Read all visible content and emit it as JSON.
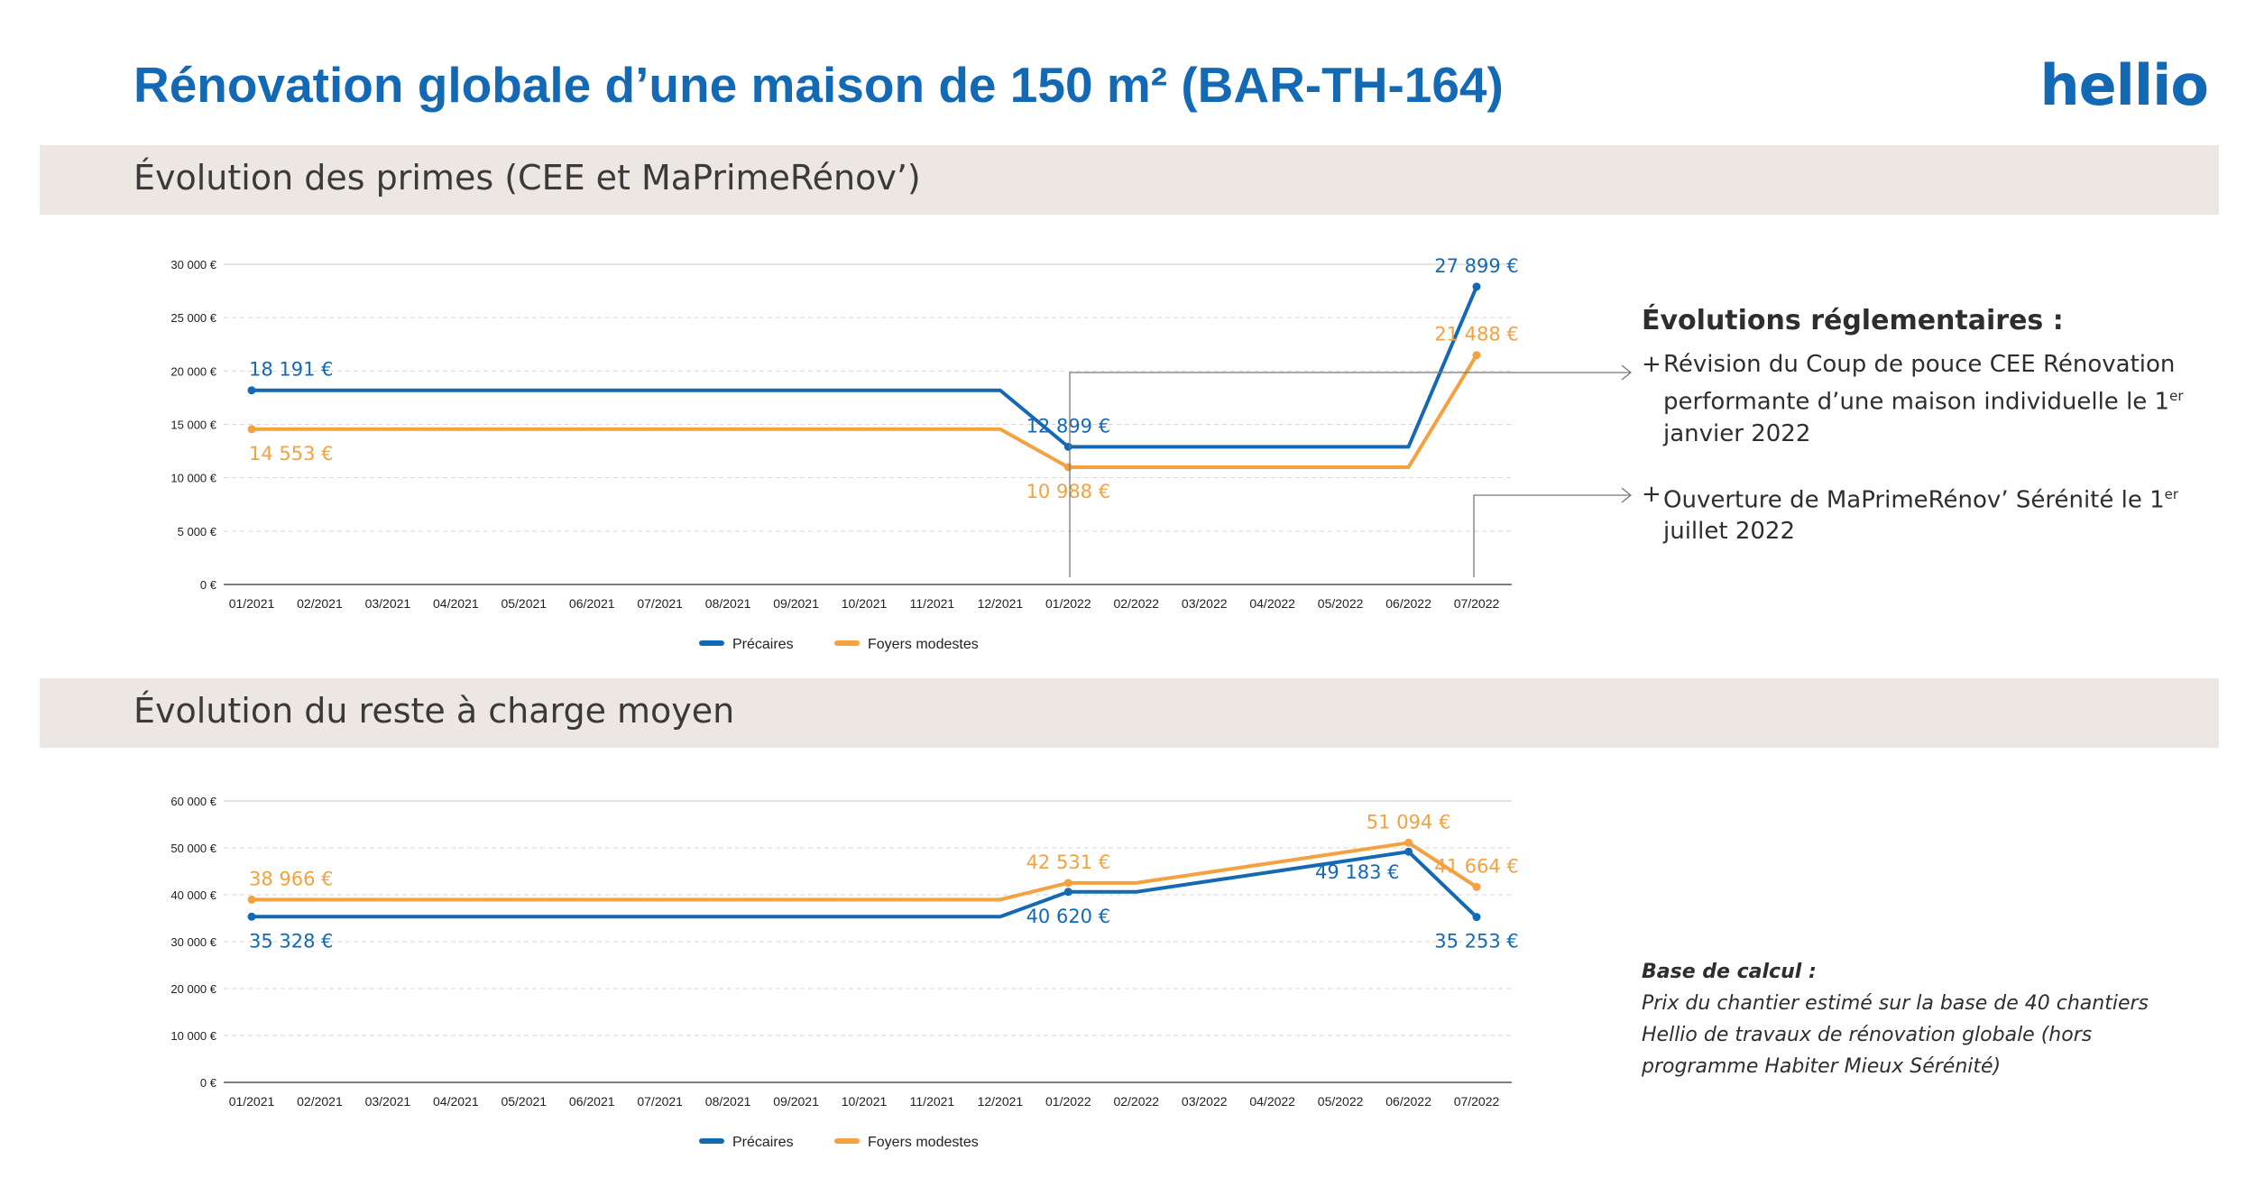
{
  "header": {
    "title": "Rénovation globale d’une maison de 150 m² (BAR-TH-164)",
    "logo": "hellio"
  },
  "section1": {
    "title": "Évolution des primes (CEE et MaPrimeRénov’)"
  },
  "section2": {
    "title": "Évolution du reste à charge moyen"
  },
  "colors": {
    "precaires": "#1469b4",
    "modestes": "#f4a140",
    "band": "#ece7e3"
  },
  "chart_data": [
    {
      "type": "line",
      "categories": [
        "01/2021",
        "02/2021",
        "03/2021",
        "04/2021",
        "05/2021",
        "06/2021",
        "07/2021",
        "08/2021",
        "09/2021",
        "10/2021",
        "11/2021",
        "12/2021",
        "01/2022",
        "02/2022",
        "03/2022",
        "04/2022",
        "05/2022",
        "06/2022",
        "07/2022"
      ],
      "ylim": [
        0,
        30000
      ],
      "yticks": [
        0,
        5000,
        10000,
        15000,
        20000,
        25000,
        30000
      ],
      "ytick_labels": [
        "0 €",
        "5 000 €",
        "10 000 €",
        "15 000 €",
        "20 000 €",
        "25 000 €",
        "30 000 €"
      ],
      "grid": true,
      "legend": "bottom",
      "series": [
        {
          "name": "Précaires",
          "color": "#1469b4",
          "values": [
            18191,
            18191,
            18191,
            18191,
            18191,
            18191,
            18191,
            18191,
            18191,
            18191,
            18191,
            18191,
            12899,
            12899,
            12899,
            12899,
            12899,
            12899,
            27899
          ],
          "labels": [
            {
              "index": 0,
              "text": "18 191 €",
              "pos": "above"
            },
            {
              "index": 12,
              "text": "12 899 €",
              "pos": "above"
            },
            {
              "index": 18,
              "text": "27 899 €",
              "pos": "above"
            }
          ]
        },
        {
          "name": "Foyers modestes",
          "color": "#f4a140",
          "values": [
            14553,
            14553,
            14553,
            14553,
            14553,
            14553,
            14553,
            14553,
            14553,
            14553,
            14553,
            14553,
            10988,
            10988,
            10988,
            10988,
            10988,
            10988,
            21488
          ],
          "labels": [
            {
              "index": 0,
              "text": "14 553 €",
              "pos": "below"
            },
            {
              "index": 12,
              "text": "10 988 €",
              "pos": "below"
            },
            {
              "index": 18,
              "text": "21 488 €",
              "pos": "above"
            }
          ]
        }
      ]
    },
    {
      "type": "line",
      "categories": [
        "01/2021",
        "02/2021",
        "03/2021",
        "04/2021",
        "05/2021",
        "06/2021",
        "07/2021",
        "08/2021",
        "09/2021",
        "10/2021",
        "11/2021",
        "12/2021",
        "01/2022",
        "02/2022",
        "03/2022",
        "04/2022",
        "05/2022",
        "06/2022",
        "07/2022"
      ],
      "ylim": [
        0,
        60000
      ],
      "yticks": [
        0,
        10000,
        20000,
        30000,
        40000,
        50000,
        60000
      ],
      "ytick_labels": [
        "0 €",
        "10 000 €",
        "20 000 €",
        "30 000 €",
        "40 000 €",
        "50 000 €",
        "60 000 €"
      ],
      "grid": true,
      "legend": "bottom",
      "series": [
        {
          "name": "Précaires",
          "color": "#1469b4",
          "values": [
            35328,
            35328,
            35328,
            35328,
            35328,
            35328,
            35328,
            35328,
            35328,
            35328,
            35328,
            35328,
            40620,
            40620,
            42770,
            44910,
            47050,
            49183,
            35253
          ],
          "labels": [
            {
              "index": 0,
              "text": "35 328 €",
              "pos": "below"
            },
            {
              "index": 12,
              "text": "40 620 €",
              "pos": "below"
            },
            {
              "index": 17,
              "text": "49 183 €",
              "pos": "left"
            },
            {
              "index": 18,
              "text": "35 253 €",
              "pos": "below"
            }
          ]
        },
        {
          "name": "Foyers modestes",
          "color": "#f4a140",
          "values": [
            38966,
            38966,
            38966,
            38966,
            38966,
            38966,
            38966,
            38966,
            38966,
            38966,
            38966,
            38966,
            42531,
            42531,
            44670,
            46810,
            48950,
            51094,
            41664
          ],
          "labels": [
            {
              "index": 0,
              "text": "38 966 €",
              "pos": "above"
            },
            {
              "index": 12,
              "text": "42 531 €",
              "pos": "above"
            },
            {
              "index": 17,
              "text": "51 094 €",
              "pos": "above"
            },
            {
              "index": 18,
              "text": "41 664 €",
              "pos": "above"
            }
          ]
        }
      ]
    }
  ],
  "regulatory": {
    "title": "Évolutions réglementaires :",
    "items": [
      {
        "plus": "+",
        "text_before": "Révision du Coup de pouce CEE Rénovation performante d’une maison individuelle le 1",
        "sup": "er",
        "text_after": " janvier 2022"
      },
      {
        "plus": "+",
        "text_before": "Ouverture de MaPrimeRénov’ Sérénité le 1",
        "sup": "er",
        "text_after": " juillet 2022"
      }
    ]
  },
  "base_calcul": {
    "title": "Base de calcul :",
    "text": "Prix du chantier estimé sur la base de 40 chantiers Hellio de travaux de rénovation globale (hors programme Habiter Mieux Sérénité)"
  }
}
